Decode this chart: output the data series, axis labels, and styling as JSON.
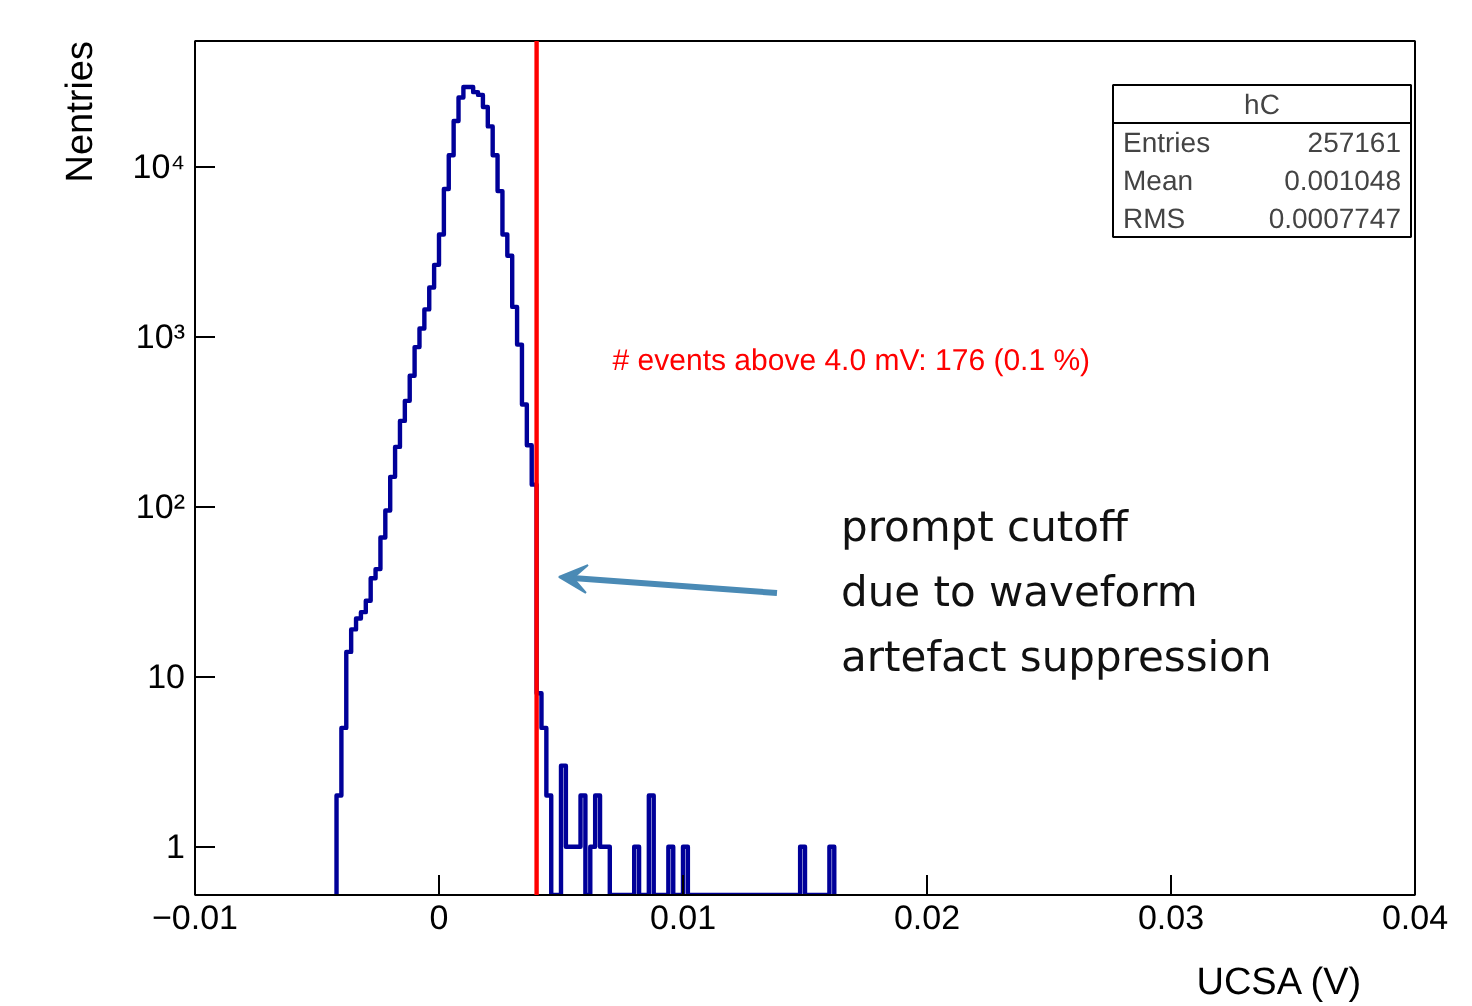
{
  "chart_data": {
    "type": "histogram",
    "xlabel": "UCSA (V)",
    "ylabel": "Nentries",
    "bins": [
      -0.0042,
      -0.004,
      -0.0038,
      -0.0036,
      -0.0034,
      -0.0032,
      -0.003,
      -0.0028,
      -0.0026,
      -0.0024,
      -0.0022,
      -0.002,
      -0.0018,
      -0.0016,
      -0.0014,
      -0.0012,
      -0.001,
      -0.0008,
      -0.0006,
      -0.0004,
      -0.0002,
      0,
      0.0002,
      0.0004,
      0.0006,
      0.0008,
      0.001,
      0.0012,
      0.0014,
      0.0016,
      0.0018,
      0.002,
      0.0022,
      0.0024,
      0.0026,
      0.0028,
      0.003,
      0.0032,
      0.0034,
      0.0036,
      0.0038,
      0.004,
      0.0042,
      0.0044,
      0.0046,
      0.0048,
      0.005,
      0.0052,
      0.0054,
      0.0056,
      0.0058,
      0.006,
      0.0062,
      0.0064,
      0.0066,
      0.0068,
      0.007,
      0.0072,
      0.0074,
      0.0076,
      0.0078,
      0.008,
      0.0082,
      0.0084,
      0.0086,
      0.0088,
      0.009,
      0.0092,
      0.0094,
      0.0096,
      0.0098,
      0.01,
      0.0102,
      0.0104,
      0.0106,
      0.0108,
      0.011,
      0.0112,
      0.0114,
      0.0116,
      0.0118,
      0.012,
      0.0122,
      0.0124,
      0.0126,
      0.0128,
      0.013,
      0.0132,
      0.0134,
      0.0136,
      0.0138,
      0.014,
      0.0142,
      0.0144,
      0.0146,
      0.0148,
      0.015,
      0.0152,
      0.0154,
      0.0156,
      0.0158,
      0.016,
      0.0162
    ],
    "values": [
      2,
      5,
      14,
      19,
      22,
      24,
      28,
      38,
      43,
      66,
      95,
      150,
      225,
      320,
      420,
      590,
      870,
      1120,
      1450,
      1950,
      2650,
      4000,
      7400,
      11700,
      18600,
      25600,
      29500,
      29500,
      27500,
      26500,
      22500,
      17300,
      11700,
      7200,
      4000,
      3000,
      1500,
      900,
      400,
      230,
      135,
      8,
      5,
      2,
      null,
      null,
      3,
      1,
      1,
      1,
      2,
      null,
      1,
      2,
      1,
      1,
      null,
      null,
      null,
      null,
      null,
      1,
      null,
      null,
      2,
      null,
      null,
      null,
      1,
      null,
      null,
      1,
      null,
      null,
      null,
      null,
      null,
      null,
      null,
      null,
      null,
      null,
      null,
      null,
      null,
      null,
      null,
      null,
      null,
      null,
      null,
      null,
      null,
      null,
      null,
      1,
      null,
      null,
      null,
      null,
      null,
      1
    ],
    "color": "#000099",
    "xlim": [
      -0.01,
      0.04
    ],
    "xticks": [
      {
        "value": -0.01,
        "label": "−0.01"
      },
      0,
      0.01,
      0.02,
      0.03,
      0.04
    ],
    "ylim": [
      0.52,
      55000
    ],
    "yticks": [
      1,
      10,
      {
        "value": 100,
        "label": "10²"
      },
      {
        "value": 1000,
        "label": "10³"
      },
      {
        "value": 10000,
        "label": "10⁴"
      }
    ],
    "log": "y",
    "grid": false,
    "ref_lines": [
      {
        "axis": "x",
        "value": 0.004,
        "label": "# events above 4.0 mV: 176 (0.1 %)",
        "color": "#ff0000"
      }
    ],
    "annotations": [
      "prompt cutoff\ndue to waveform\nartefact suppression",
      "hC",
      "Entries 257161",
      "Mean 0.001048",
      "RMS 0.0007747"
    ]
  }
}
